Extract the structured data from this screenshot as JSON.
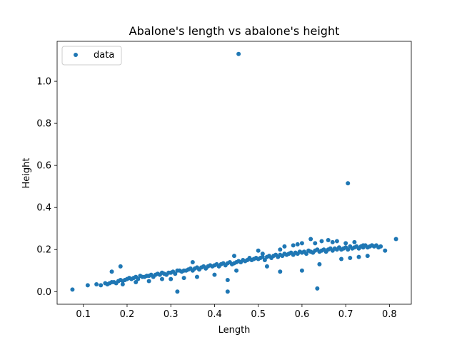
{
  "chart_data": {
    "type": "scatter",
    "title": "Abalone's length vs abalone's height",
    "xlabel": "Length",
    "ylabel": "Height",
    "xlim": [
      0.04,
      0.85
    ],
    "ylim": [
      -0.06,
      1.19
    ],
    "xticks": [
      0.1,
      0.2,
      0.3,
      0.4,
      0.5,
      0.6,
      0.7,
      0.8
    ],
    "xtick_labels": [
      "0.1",
      "0.2",
      "0.3",
      "0.4",
      "0.5",
      "0.6",
      "0.7",
      "0.8"
    ],
    "yticks": [
      0.0,
      0.2,
      0.4,
      0.6,
      0.8,
      1.0
    ],
    "ytick_labels": [
      "0.0",
      "0.2",
      "0.4",
      "0.6",
      "0.8",
      "1.0"
    ],
    "grid": false,
    "legend": {
      "position": "top-left",
      "entries": [
        "data"
      ]
    },
    "series": [
      {
        "name": "data",
        "color": "#1f77b4",
        "x": [
          0.075,
          0.11,
          0.13,
          0.14,
          0.15,
          0.155,
          0.16,
          0.165,
          0.17,
          0.175,
          0.18,
          0.185,
          0.19,
          0.195,
          0.2,
          0.205,
          0.21,
          0.215,
          0.22,
          0.225,
          0.23,
          0.235,
          0.24,
          0.245,
          0.25,
          0.255,
          0.26,
          0.265,
          0.27,
          0.275,
          0.28,
          0.285,
          0.29,
          0.295,
          0.3,
          0.305,
          0.31,
          0.315,
          0.32,
          0.325,
          0.33,
          0.335,
          0.34,
          0.345,
          0.35,
          0.355,
          0.36,
          0.365,
          0.37,
          0.375,
          0.38,
          0.385,
          0.39,
          0.395,
          0.4,
          0.405,
          0.41,
          0.415,
          0.42,
          0.425,
          0.43,
          0.435,
          0.44,
          0.445,
          0.45,
          0.455,
          0.46,
          0.465,
          0.47,
          0.475,
          0.48,
          0.485,
          0.49,
          0.495,
          0.5,
          0.505,
          0.51,
          0.515,
          0.52,
          0.525,
          0.53,
          0.535,
          0.54,
          0.545,
          0.55,
          0.555,
          0.56,
          0.565,
          0.57,
          0.575,
          0.58,
          0.585,
          0.59,
          0.595,
          0.6,
          0.605,
          0.61,
          0.615,
          0.62,
          0.625,
          0.63,
          0.635,
          0.64,
          0.645,
          0.65,
          0.655,
          0.66,
          0.665,
          0.67,
          0.675,
          0.68,
          0.685,
          0.69,
          0.695,
          0.7,
          0.705,
          0.71,
          0.715,
          0.72,
          0.725,
          0.73,
          0.735,
          0.74,
          0.745,
          0.75,
          0.755,
          0.76,
          0.765,
          0.77,
          0.775,
          0.78,
          0.79,
          0.815,
          0.455,
          0.705,
          0.315,
          0.43,
          0.635,
          0.165,
          0.185,
          0.3,
          0.35,
          0.43,
          0.445,
          0.5,
          0.55,
          0.58,
          0.6,
          0.62,
          0.645,
          0.66,
          0.68,
          0.7,
          0.72,
          0.74,
          0.76,
          0.64,
          0.6,
          0.55,
          0.52,
          0.45,
          0.4,
          0.36,
          0.33,
          0.28,
          0.25,
          0.22,
          0.19,
          0.48,
          0.51,
          0.56,
          0.59,
          0.63,
          0.67,
          0.69,
          0.71,
          0.73,
          0.75
        ],
        "y": [
          0.01,
          0.03,
          0.035,
          0.03,
          0.04,
          0.035,
          0.04,
          0.045,
          0.045,
          0.04,
          0.05,
          0.055,
          0.05,
          0.055,
          0.06,
          0.065,
          0.06,
          0.065,
          0.07,
          0.06,
          0.075,
          0.07,
          0.07,
          0.075,
          0.075,
          0.08,
          0.07,
          0.08,
          0.085,
          0.08,
          0.09,
          0.085,
          0.08,
          0.09,
          0.09,
          0.095,
          0.085,
          0.1,
          0.1,
          0.095,
          0.1,
          0.1,
          0.105,
          0.11,
          0.1,
          0.11,
          0.115,
          0.105,
          0.115,
          0.12,
          0.11,
          0.12,
          0.125,
          0.12,
          0.125,
          0.13,
          0.12,
          0.13,
          0.135,
          0.125,
          0.135,
          0.14,
          0.13,
          0.135,
          0.14,
          0.145,
          0.14,
          0.15,
          0.145,
          0.15,
          0.155,
          0.15,
          0.155,
          0.16,
          0.155,
          0.16,
          0.165,
          0.15,
          0.165,
          0.17,
          0.16,
          0.17,
          0.175,
          0.165,
          0.175,
          0.17,
          0.18,
          0.175,
          0.18,
          0.185,
          0.175,
          0.185,
          0.18,
          0.19,
          0.185,
          0.19,
          0.18,
          0.195,
          0.19,
          0.185,
          0.195,
          0.2,
          0.19,
          0.195,
          0.2,
          0.19,
          0.2,
          0.205,
          0.195,
          0.205,
          0.2,
          0.21,
          0.2,
          0.205,
          0.21,
          0.2,
          0.215,
          0.205,
          0.21,
          0.215,
          0.205,
          0.215,
          0.21,
          0.22,
          0.21,
          0.215,
          0.22,
          0.215,
          0.22,
          0.21,
          0.215,
          0.195,
          0.25,
          1.13,
          0.515,
          0.0,
          0.0,
          0.015,
          0.095,
          0.12,
          0.06,
          0.14,
          0.055,
          0.17,
          0.195,
          0.2,
          0.22,
          0.23,
          0.25,
          0.24,
          0.245,
          0.24,
          0.23,
          0.235,
          0.22,
          0.22,
          0.13,
          0.1,
          0.095,
          0.12,
          0.1,
          0.08,
          0.07,
          0.065,
          0.06,
          0.05,
          0.045,
          0.035,
          0.16,
          0.18,
          0.215,
          0.225,
          0.23,
          0.235,
          0.155,
          0.16,
          0.165,
          0.17
        ]
      }
    ]
  }
}
